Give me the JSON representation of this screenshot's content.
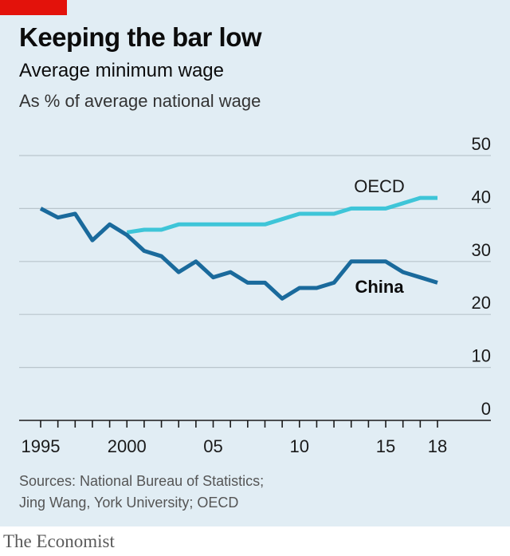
{
  "header": {
    "title": "Keeping the bar low",
    "subtitle": "Average minimum wage",
    "unit": "As % of average national wage"
  },
  "footer": {
    "sources_line1": "Sources: National Bureau of Statistics;",
    "sources_line2": "Jing Wang, York University; OECD",
    "brand": "The Economist"
  },
  "colors": {
    "background": "#e1edf4",
    "china": "#1a6a9c",
    "oecd": "#3ec5d8",
    "accent": "#e3120b"
  },
  "chart_data": {
    "type": "line",
    "title": "Keeping the bar low",
    "subtitle": "Average minimum wage",
    "ylabel": "As % of average national wage",
    "xlim": [
      1995,
      2018
    ],
    "ylim": [
      0,
      50
    ],
    "yticks": [
      0,
      10,
      20,
      30,
      40,
      50
    ],
    "ytick_labels": [
      "0",
      "10",
      "20",
      "30",
      "40",
      "50"
    ],
    "xtick_labels": [
      {
        "x": 1995,
        "label": "1995"
      },
      {
        "x": 2000,
        "label": "2000"
      },
      {
        "x": 2005,
        "label": "05"
      },
      {
        "x": 2010,
        "label": "10"
      },
      {
        "x": 2015,
        "label": "15"
      },
      {
        "x": 2018,
        "label": "18"
      }
    ],
    "grid": true,
    "series": [
      {
        "name": "OECD",
        "color": "#3ec5d8",
        "x": [
          2000,
          2001,
          2002,
          2003,
          2004,
          2005,
          2006,
          2007,
          2008,
          2009,
          2010,
          2011,
          2012,
          2013,
          2014,
          2015,
          2016,
          2017,
          2018
        ],
        "values": [
          35.5,
          36,
          36,
          37,
          37,
          37,
          37,
          37,
          37,
          38,
          39,
          39,
          39,
          40,
          40,
          40,
          41,
          42,
          42
        ]
      },
      {
        "name": "China",
        "color": "#1a6a9c",
        "x": [
          1995,
          1996,
          1997,
          1998,
          1999,
          2000,
          2001,
          2002,
          2003,
          2004,
          2005,
          2006,
          2007,
          2008,
          2009,
          2010,
          2011,
          2012,
          2013,
          2014,
          2015,
          2016,
          2017,
          2018
        ],
        "values": [
          40,
          38.3,
          39,
          34,
          37,
          35,
          32,
          31,
          28,
          30,
          27,
          28,
          26,
          26,
          23,
          25,
          25,
          26,
          30,
          30,
          30,
          28,
          27,
          26
        ]
      }
    ]
  }
}
